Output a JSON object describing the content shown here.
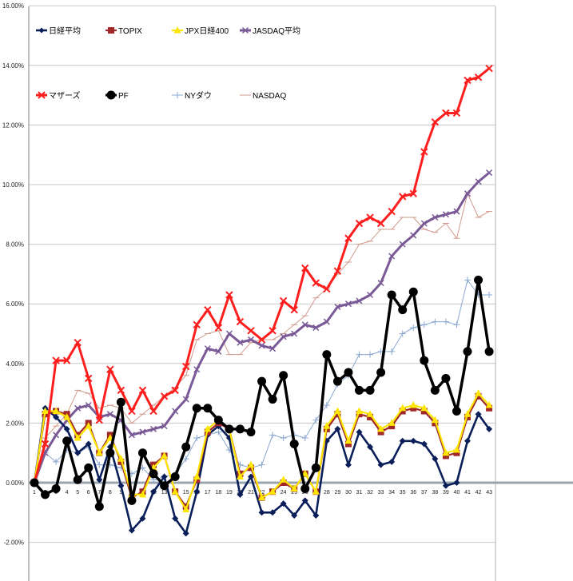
{
  "chart_data": {
    "type": "line",
    "x": [
      1,
      2,
      3,
      4,
      5,
      6,
      7,
      8,
      9,
      10,
      11,
      12,
      13,
      14,
      15,
      16,
      17,
      18,
      19,
      20,
      21,
      22,
      23,
      24,
      25,
      26,
      27,
      28,
      29,
      30,
      31,
      32,
      33,
      34,
      35,
      36,
      37,
      38,
      39,
      40,
      41,
      42,
      43
    ],
    "y_ticks": [
      "16.00%",
      "14.00%",
      "12.00%",
      "10.00%",
      "8.00%",
      "6.00%",
      "4.00%",
      "2.00%",
      "0.00%",
      "-2.00%"
    ],
    "y_tick_values": [
      16,
      14,
      12,
      10,
      8,
      6,
      4,
      2,
      0,
      -2
    ],
    "ylim": [
      -3.3,
      16
    ],
    "grid": true,
    "legend_position": "top",
    "series": [
      {
        "name": "日経平均",
        "color": "#0a1e5a",
        "marker": "diamond",
        "width": 2.6,
        "values": [
          0,
          2.5,
          2.2,
          1.8,
          1.0,
          1.3,
          0.1,
          1.2,
          -0.1,
          -1.6,
          -1.2,
          -0.3,
          0.2,
          -1.2,
          -1.7,
          -0.3,
          1.6,
          1.9,
          1.5,
          -0.4,
          0.2,
          -1.0,
          -1.0,
          -0.7,
          -1.1,
          -0.6,
          -1.1,
          1.4,
          1.8,
          0.6,
          1.7,
          1.2,
          0.6,
          0.7,
          1.4,
          1.4,
          1.3,
          0.8,
          -0.1,
          0.0,
          1.4,
          2.3,
          1.8
        ]
      },
      {
        "name": "TOPIX",
        "color": "#a02828",
        "marker": "square",
        "width": 2.2,
        "values": [
          0,
          2.3,
          2.4,
          2.3,
          1.6,
          2.0,
          1.0,
          1.6,
          0.7,
          -0.5,
          -0.3,
          0.6,
          0.9,
          -0.3,
          -0.8,
          0.1,
          1.7,
          2.0,
          1.8,
          0.3,
          0.5,
          -0.5,
          -0.3,
          0.0,
          -0.2,
          0.3,
          -0.3,
          1.8,
          2.3,
          1.3,
          2.3,
          2.2,
          1.7,
          1.9,
          2.4,
          2.5,
          2.4,
          2.0,
          0.9,
          1.0,
          2.2,
          2.9,
          2.5
        ]
      },
      {
        "name": "JPX日経400",
        "color": "#ffe600",
        "marker": "triangle",
        "width": 2.2,
        "values": [
          0,
          2.4,
          2.4,
          2.2,
          1.5,
          1.9,
          1.0,
          1.5,
          0.8,
          -0.4,
          -0.4,
          0.5,
          0.9,
          -0.3,
          -0.9,
          0.2,
          1.8,
          2.1,
          1.8,
          0.2,
          0.6,
          -0.5,
          -0.3,
          0.1,
          -0.2,
          0.3,
          -0.3,
          1.9,
          2.4,
          1.4,
          2.4,
          2.3,
          1.8,
          2.0,
          2.5,
          2.6,
          2.5,
          2.1,
          1.0,
          1.1,
          2.3,
          3.0,
          2.6
        ]
      },
      {
        "name": "JASDAQ平均",
        "color": "#7a5a96",
        "marker": "cross",
        "width": 3,
        "values": [
          0,
          1.0,
          1.6,
          2.1,
          2.5,
          2.6,
          2.2,
          2.3,
          2.1,
          1.6,
          1.7,
          1.8,
          1.9,
          2.4,
          2.8,
          3.8,
          4.5,
          4.4,
          5.0,
          4.7,
          4.8,
          4.6,
          4.5,
          4.9,
          5.0,
          5.3,
          5.2,
          5.4,
          5.9,
          6.0,
          6.1,
          6.3,
          6.7,
          7.6,
          8.0,
          8.3,
          8.7,
          8.9,
          9.0,
          9.1,
          9.7,
          10.1,
          10.4
        ]
      },
      {
        "name": "マザーズ",
        "color": "#ff1e1e",
        "marker": "x",
        "width": 3,
        "values": [
          0,
          1.3,
          4.1,
          4.1,
          4.7,
          3.5,
          2.1,
          3.8,
          3.1,
          2.4,
          3.1,
          2.4,
          2.9,
          3.1,
          3.9,
          5.3,
          5.8,
          5.2,
          6.3,
          5.4,
          5.1,
          4.8,
          5.1,
          6.1,
          5.8,
          7.2,
          6.7,
          6.5,
          7.1,
          8.2,
          8.7,
          8.9,
          8.7,
          9.1,
          9.6,
          9.7,
          11.1,
          12.1,
          12.4,
          12.4,
          13.5,
          13.6,
          13.9
        ]
      },
      {
        "name": "PF",
        "color": "#000000",
        "marker": "circle",
        "width": 3.5,
        "values": [
          0,
          -0.4,
          -0.2,
          1.4,
          0.1,
          0.5,
          -0.8,
          1.0,
          2.7,
          -0.6,
          1.0,
          0.3,
          -0.1,
          0.2,
          1.2,
          2.5,
          2.5,
          2.1,
          1.8,
          1.8,
          1.7,
          3.4,
          2.8,
          3.6,
          1.3,
          -0.2,
          0.5,
          4.3,
          3.4,
          3.7,
          3.1,
          3.1,
          3.7,
          6.3,
          5.8,
          6.4,
          4.1,
          3.1,
          3.5,
          2.4,
          4.4,
          6.8,
          4.4
        ]
      },
      {
        "name": "NYダウ",
        "color": "#8aa8d0",
        "marker": "plus",
        "width": 1,
        "values": [
          0,
          1.0,
          0.7,
          1.1,
          1.0,
          1.2,
          0.6,
          0.6,
          0.5,
          0.3,
          0.5,
          0.1,
          0.2,
          0.3,
          0.8,
          1.5,
          1.6,
          1.7,
          1.1,
          0.6,
          0.5,
          0.6,
          1.6,
          1.5,
          1.6,
          1.5,
          2.1,
          2.6,
          3.3,
          3.6,
          4.3,
          4.3,
          4.4,
          4.4,
          5.0,
          5.2,
          5.3,
          5.4,
          5.4,
          5.3,
          6.8,
          6.3,
          6.3
        ]
      },
      {
        "name": "NASDAQ",
        "color": "#d29a8c",
        "marker": "dash",
        "width": 1,
        "values": [
          0,
          1.5,
          1.9,
          2.3,
          3.1,
          3.0,
          2.5,
          2.6,
          2.5,
          2.0,
          2.3,
          2.6,
          2.9,
          3.2,
          3.6,
          4.8,
          5.0,
          5.1,
          4.3,
          4.3,
          4.7,
          4.8,
          4.8,
          5.0,
          5.3,
          5.6,
          6.2,
          6.5,
          7.0,
          7.4,
          8.0,
          8.1,
          8.5,
          8.5,
          8.9,
          8.9,
          8.5,
          8.4,
          8.7,
          8.2,
          9.7,
          8.9,
          9.1
        ]
      }
    ]
  }
}
